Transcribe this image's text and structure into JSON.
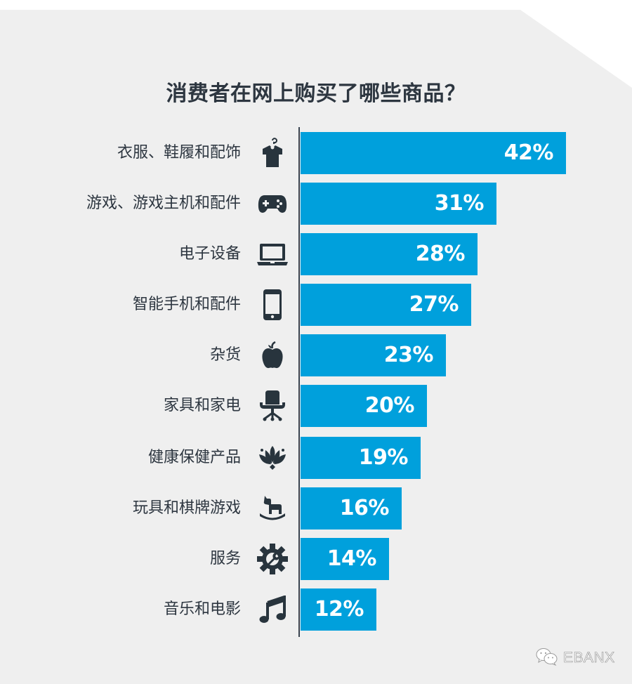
{
  "title": "消费者在网上购买了哪些商品？",
  "colors": {
    "background": "#efefef",
    "bar": "#00a0dc",
    "text": "#2d3640",
    "icon": "#28343d",
    "value_text": "#ffffff"
  },
  "watermark": {
    "icon": "wechat-icon",
    "text": "EBANX"
  },
  "chart_data": {
    "type": "bar",
    "orientation": "horizontal",
    "title": "消费者在网上购买了哪些商品？",
    "xlabel": "",
    "ylabel": "",
    "unit": "%",
    "grid": false,
    "legend": null,
    "categories": [
      "衣服、鞋履和配饰",
      "游戏、游戏主机和配件",
      "电子设备",
      "智能手机和配件",
      "杂货",
      "家具和家电",
      "健康保健产品",
      "玩具和棋牌游戏",
      "服务",
      "音乐和电影"
    ],
    "values": [
      42,
      31,
      28,
      27,
      23,
      20,
      19,
      16,
      14,
      12
    ],
    "value_labels": [
      "42%",
      "31%",
      "28%",
      "27%",
      "23%",
      "20%",
      "19%",
      "16%",
      "14%",
      "12%"
    ],
    "icons": [
      "clothes-hanger-icon",
      "gamepad-icon",
      "laptop-icon",
      "smartphone-icon",
      "apple-icon",
      "office-chair-icon",
      "lotus-icon",
      "rocking-horse-icon",
      "gear-wrench-icon",
      "music-note-icon"
    ],
    "xlim": [
      0,
      42
    ]
  }
}
